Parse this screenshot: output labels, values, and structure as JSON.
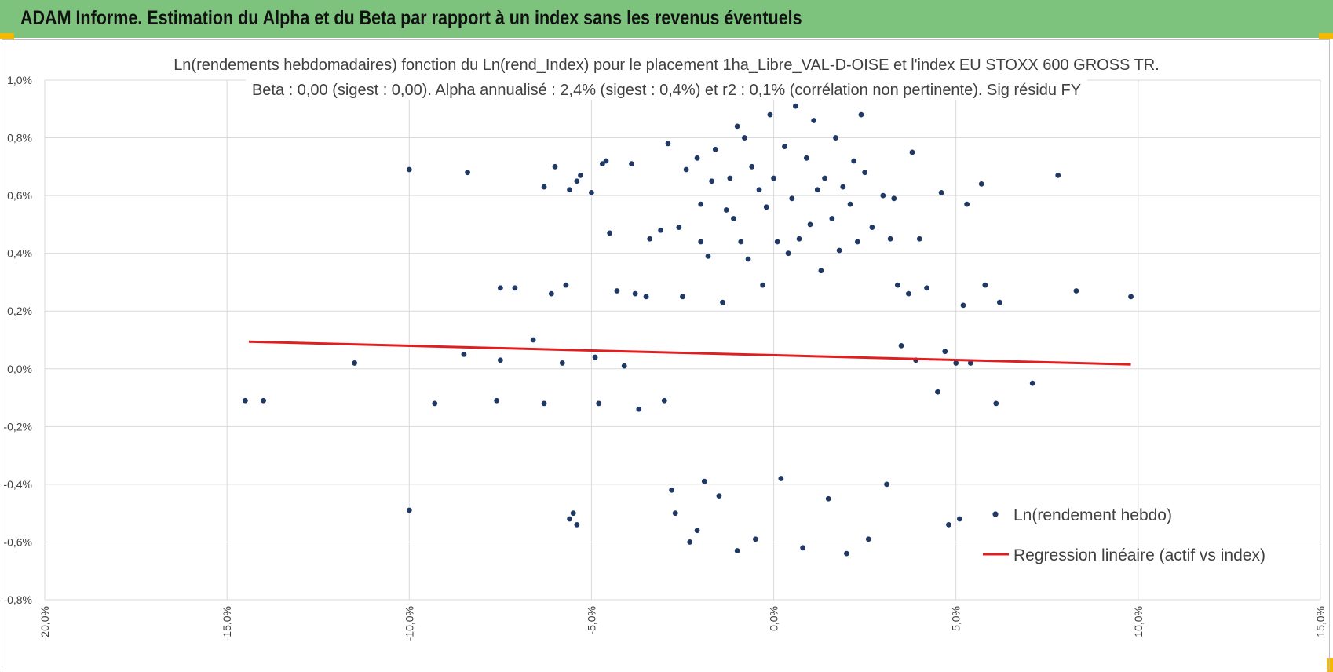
{
  "header": {
    "title": "ADAM Informe. Estimation du Alpha et du Beta par rapport à un index sans les revenus éventuels"
  },
  "colors": {
    "banner": "#7dc37e",
    "accent": "#f5b800",
    "points": "#203864",
    "regression": "#e02020",
    "grid": "#d9d9d9",
    "text": "#404040"
  },
  "chart_data": {
    "type": "scatter",
    "title": [
      "Ln(rendements hebdomadaires) fonction du Ln(rend_Index) pour le placement 1ha_Libre_VAL-D-OISE et l'index EU STOXX 600 GROSS TR.",
      "Beta : 0,00 (sigest : 0,00). Alpha annualisé : 2,4% (sigest : 0,4%) et r2 : 0,1% (corrélation non pertinente). Sig résidu FY"
    ],
    "xlabel": "",
    "ylabel": "",
    "xlim": [
      -20,
      15
    ],
    "ylim": [
      -0.8,
      1.0
    ],
    "x_ticks": [
      -20,
      -15,
      -10,
      -5,
      0,
      5,
      10,
      15
    ],
    "x_tick_labels": [
      "-20,0%",
      "-15,0%",
      "-10,0%",
      "-5,0%",
      "0,0%",
      "5,0%",
      "10,0%",
      "15,0%"
    ],
    "y_ticks": [
      -0.8,
      -0.6,
      -0.4,
      -0.2,
      0.0,
      0.2,
      0.4,
      0.6,
      0.8,
      1.0
    ],
    "y_tick_labels": [
      "-0,8%",
      "-0,6%",
      "-0,4%",
      "-0,2%",
      "0,0%",
      "0,2%",
      "0,4%",
      "0,6%",
      "0,8%",
      "1,0%"
    ],
    "grid": true,
    "legend_position": "bottom-right",
    "series": [
      {
        "name": "Ln(rendement hebdo)",
        "kind": "scatter",
        "points": [
          [
            -14.5,
            -0.11
          ],
          [
            -14.0,
            -0.11
          ],
          [
            -11.5,
            0.02
          ],
          [
            -10.0,
            0.69
          ],
          [
            -10.0,
            -0.49
          ],
          [
            -9.3,
            -0.12
          ],
          [
            -8.5,
            0.05
          ],
          [
            -8.4,
            0.68
          ],
          [
            -7.6,
            -0.11
          ],
          [
            -7.5,
            0.28
          ],
          [
            -7.5,
            0.03
          ],
          [
            -7.1,
            0.28
          ],
          [
            -6.6,
            0.1
          ],
          [
            -6.3,
            0.63
          ],
          [
            -6.3,
            -0.12
          ],
          [
            -6.1,
            0.26
          ],
          [
            -6.0,
            0.7
          ],
          [
            -5.8,
            0.02
          ],
          [
            -5.7,
            0.29
          ],
          [
            -5.6,
            0.62
          ],
          [
            -5.6,
            -0.52
          ],
          [
            -5.5,
            -0.5
          ],
          [
            -5.4,
            0.65
          ],
          [
            -5.4,
            -0.54
          ],
          [
            -5.3,
            0.67
          ],
          [
            -5.0,
            0.61
          ],
          [
            -4.9,
            0.04
          ],
          [
            -4.8,
            -0.12
          ],
          [
            -4.7,
            0.71
          ],
          [
            -4.6,
            0.72
          ],
          [
            -4.5,
            0.47
          ],
          [
            -4.3,
            0.27
          ],
          [
            -4.1,
            0.01
          ],
          [
            -3.9,
            0.71
          ],
          [
            -3.8,
            0.26
          ],
          [
            -3.7,
            -0.14
          ],
          [
            -3.5,
            0.25
          ],
          [
            -3.4,
            0.45
          ],
          [
            -3.1,
            0.48
          ],
          [
            -3.0,
            -0.11
          ],
          [
            -2.9,
            0.78
          ],
          [
            -2.8,
            -0.42
          ],
          [
            -2.7,
            -0.5
          ],
          [
            -2.6,
            0.49
          ],
          [
            -2.5,
            0.25
          ],
          [
            -2.4,
            0.69
          ],
          [
            -2.3,
            -0.6
          ],
          [
            -2.1,
            0.73
          ],
          [
            -2.1,
            -0.56
          ],
          [
            -2.0,
            0.57
          ],
          [
            -2.0,
            0.44
          ],
          [
            -1.9,
            -0.39
          ],
          [
            -1.8,
            0.39
          ],
          [
            -1.7,
            0.65
          ],
          [
            -1.6,
            0.76
          ],
          [
            -1.5,
            -0.44
          ],
          [
            -1.4,
            0.23
          ],
          [
            -1.3,
            0.55
          ],
          [
            -1.2,
            0.66
          ],
          [
            -1.1,
            0.52
          ],
          [
            -1.0,
            0.84
          ],
          [
            -1.0,
            -0.63
          ],
          [
            -0.9,
            0.44
          ],
          [
            -0.8,
            0.8
          ],
          [
            -0.7,
            0.38
          ],
          [
            -0.6,
            0.7
          ],
          [
            -0.5,
            -0.59
          ],
          [
            -0.4,
            0.62
          ],
          [
            -0.3,
            0.29
          ],
          [
            -0.2,
            0.56
          ],
          [
            -0.1,
            0.88
          ],
          [
            0.0,
            0.66
          ],
          [
            0.1,
            0.44
          ],
          [
            0.2,
            -0.38
          ],
          [
            0.3,
            0.77
          ],
          [
            0.4,
            0.4
          ],
          [
            0.5,
            0.59
          ],
          [
            0.6,
            0.91
          ],
          [
            0.7,
            0.45
          ],
          [
            0.8,
            -0.62
          ],
          [
            0.9,
            0.73
          ],
          [
            1.0,
            0.5
          ],
          [
            1.1,
            0.86
          ],
          [
            1.2,
            0.62
          ],
          [
            1.3,
            0.34
          ],
          [
            1.4,
            0.66
          ],
          [
            1.5,
            -0.45
          ],
          [
            1.6,
            0.52
          ],
          [
            1.7,
            0.8
          ],
          [
            1.8,
            0.41
          ],
          [
            1.9,
            0.63
          ],
          [
            2.0,
            -0.64
          ],
          [
            2.1,
            0.57
          ],
          [
            2.2,
            0.72
          ],
          [
            2.3,
            0.44
          ],
          [
            2.4,
            0.88
          ],
          [
            2.5,
            0.68
          ],
          [
            2.6,
            -0.59
          ],
          [
            2.7,
            0.49
          ],
          [
            3.0,
            0.6
          ],
          [
            3.1,
            -0.4
          ],
          [
            3.2,
            0.45
          ],
          [
            3.3,
            0.59
          ],
          [
            3.4,
            0.29
          ],
          [
            3.5,
            0.08
          ],
          [
            3.7,
            0.26
          ],
          [
            3.8,
            0.75
          ],
          [
            3.9,
            0.03
          ],
          [
            4.0,
            0.45
          ],
          [
            4.2,
            0.28
          ],
          [
            4.5,
            -0.08
          ],
          [
            4.6,
            0.61
          ],
          [
            4.7,
            0.06
          ],
          [
            4.8,
            -0.54
          ],
          [
            5.0,
            0.02
          ],
          [
            5.1,
            -0.52
          ],
          [
            5.2,
            0.22
          ],
          [
            5.3,
            0.57
          ],
          [
            5.4,
            0.02
          ],
          [
            5.7,
            0.64
          ],
          [
            5.8,
            0.29
          ],
          [
            6.1,
            -0.12
          ],
          [
            6.2,
            0.23
          ],
          [
            7.1,
            -0.05
          ],
          [
            7.8,
            0.67
          ],
          [
            8.3,
            0.27
          ],
          [
            9.8,
            0.25
          ]
        ]
      },
      {
        "name": "Regression linéaire (actif vs index)",
        "kind": "line",
        "x": [
          -14.4,
          9.8
        ],
        "y": [
          0.094,
          0.015
        ]
      }
    ]
  }
}
